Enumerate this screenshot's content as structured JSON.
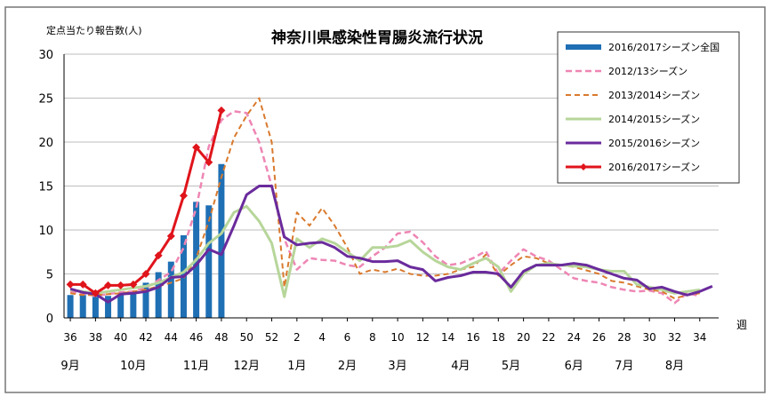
{
  "chart_data": {
    "type": "line",
    "title": "神奈川県感染性胃腸炎流行状況",
    "ylabel": "定点当たり報告数(人)",
    "xlabel": "週",
    "ylim": [
      0,
      30
    ],
    "yticks": [
      0,
      5,
      10,
      15,
      20,
      25,
      30
    ],
    "grid": true,
    "legend_position": "top-right",
    "week_ticks": [
      "36",
      "38",
      "40",
      "42",
      "44",
      "46",
      "48",
      "50",
      "52",
      "2",
      "4",
      "6",
      "8",
      "10",
      "12",
      "14",
      "16",
      "18",
      "20",
      "22",
      "24",
      "26",
      "28",
      "30",
      "32",
      "34"
    ],
    "month_labels": [
      {
        "label": "9月",
        "week": 36
      },
      {
        "label": "10月",
        "week": 41
      },
      {
        "label": "11月",
        "week": 46
      },
      {
        "label": "12月",
        "week": 50
      },
      {
        "label": "1月",
        "week": 54
      },
      {
        "label": "2月",
        "week": 58
      },
      {
        "label": "3月",
        "week": 62
      },
      {
        "label": "4月",
        "week": 67
      },
      {
        "label": "5月",
        "week": 71
      },
      {
        "label": "6月",
        "week": 76
      },
      {
        "label": "7月",
        "week": 80
      },
      {
        "label": "8月",
        "week": 84
      }
    ],
    "bar_series": {
      "name": "2016/2017シーズン全国",
      "color": "#1f6fb4",
      "weeks": [
        36,
        37,
        38,
        39,
        40,
        41,
        42,
        43,
        44,
        45,
        46,
        47,
        48
      ],
      "values": [
        2.6,
        2.6,
        2.4,
        2.5,
        2.6,
        3.0,
        4.0,
        5.2,
        6.4,
        9.4,
        13.2,
        12.8,
        17.5
      ]
    },
    "series": [
      {
        "name": "2012/13シーズン",
        "color": "#ee86b4",
        "dash": "7,4",
        "width": 2.5,
        "markers": false,
        "points": [
          [
            36,
            3.0
          ],
          [
            37,
            2.8
          ],
          [
            38,
            2.5
          ],
          [
            39,
            2.7
          ],
          [
            40,
            2.9
          ],
          [
            41,
            3.0
          ],
          [
            42,
            3.4
          ],
          [
            43,
            4.3
          ],
          [
            44,
            5.2
          ],
          [
            45,
            8.0
          ],
          [
            46,
            12.5
          ],
          [
            47,
            19.5
          ],
          [
            48,
            22.5
          ],
          [
            49,
            23.5
          ],
          [
            50,
            23.3
          ],
          [
            51,
            20.0
          ],
          [
            52,
            15.0
          ],
          [
            53,
            9.0
          ],
          [
            54,
            5.5
          ],
          [
            55,
            6.8
          ],
          [
            56,
            6.6
          ],
          [
            57,
            6.5
          ],
          [
            58,
            6.0
          ],
          [
            59,
            5.8
          ],
          [
            60,
            7.0
          ],
          [
            61,
            8.0
          ],
          [
            62,
            9.6
          ],
          [
            63,
            9.8
          ],
          [
            64,
            8.6
          ],
          [
            65,
            7.0
          ],
          [
            66,
            6.0
          ],
          [
            67,
            6.2
          ],
          [
            68,
            6.8
          ],
          [
            69,
            7.6
          ],
          [
            70,
            5.0
          ],
          [
            71,
            6.5
          ],
          [
            72,
            7.8
          ],
          [
            73,
            7.0
          ],
          [
            74,
            6.5
          ],
          [
            75,
            5.5
          ],
          [
            76,
            4.5
          ],
          [
            77,
            4.2
          ],
          [
            78,
            4.0
          ],
          [
            79,
            3.5
          ],
          [
            80,
            3.2
          ],
          [
            81,
            3.0
          ],
          [
            82,
            3.1
          ],
          [
            83,
            2.8
          ],
          [
            84,
            1.7
          ],
          [
            85,
            2.8
          ],
          [
            86,
            2.5
          ]
        ]
      },
      {
        "name": "2013/2014シーズン",
        "color": "#d97a2e",
        "dash": "6,4",
        "width": 2,
        "markers": false,
        "points": [
          [
            36,
            2.8
          ],
          [
            37,
            2.6
          ],
          [
            38,
            2.6
          ],
          [
            39,
            2.7
          ],
          [
            40,
            2.8
          ],
          [
            41,
            3.0
          ],
          [
            42,
            3.2
          ],
          [
            43,
            3.6
          ],
          [
            44,
            4.0
          ],
          [
            45,
            4.5
          ],
          [
            46,
            6.8
          ],
          [
            47,
            11.0
          ],
          [
            48,
            16.0
          ],
          [
            49,
            20.5
          ],
          [
            50,
            23.0
          ],
          [
            51,
            25.0
          ],
          [
            52,
            20.0
          ],
          [
            53,
            3.5
          ],
          [
            54,
            12.0
          ],
          [
            55,
            10.5
          ],
          [
            56,
            12.5
          ],
          [
            57,
            10.5
          ],
          [
            58,
            8.0
          ],
          [
            59,
            5.0
          ],
          [
            60,
            5.5
          ],
          [
            61,
            5.2
          ],
          [
            62,
            5.6
          ],
          [
            63,
            5.0
          ],
          [
            64,
            4.8
          ],
          [
            65,
            4.8
          ],
          [
            66,
            5.0
          ],
          [
            67,
            5.5
          ],
          [
            68,
            5.8
          ],
          [
            69,
            7.2
          ],
          [
            70,
            4.8
          ],
          [
            71,
            6.0
          ],
          [
            72,
            7.0
          ],
          [
            73,
            6.8
          ],
          [
            74,
            6.2
          ],
          [
            75,
            6.0
          ],
          [
            76,
            5.8
          ],
          [
            77,
            5.4
          ],
          [
            78,
            5.0
          ],
          [
            79,
            4.2
          ],
          [
            80,
            4.0
          ],
          [
            81,
            3.6
          ],
          [
            82,
            3.2
          ],
          [
            83,
            3.0
          ],
          [
            84,
            2.2
          ],
          [
            85,
            2.6
          ],
          [
            86,
            2.8
          ]
        ]
      },
      {
        "name": "2014/2015シーズン",
        "color": "#b7d69a",
        "dash": "",
        "width": 3,
        "markers": false,
        "points": [
          [
            36,
            3.2
          ],
          [
            37,
            3.0
          ],
          [
            38,
            2.8
          ],
          [
            39,
            3.0
          ],
          [
            40,
            3.2
          ],
          [
            41,
            3.4
          ],
          [
            42,
            3.6
          ],
          [
            43,
            4.0
          ],
          [
            44,
            4.6
          ],
          [
            45,
            5.2
          ],
          [
            46,
            6.6
          ],
          [
            47,
            8.5
          ],
          [
            48,
            9.6
          ],
          [
            49,
            12.0
          ],
          [
            50,
            12.7
          ],
          [
            51,
            11.0
          ],
          [
            52,
            8.5
          ],
          [
            53,
            2.4
          ],
          [
            54,
            9.0
          ],
          [
            55,
            8.0
          ],
          [
            56,
            9.0
          ],
          [
            57,
            8.5
          ],
          [
            58,
            7.5
          ],
          [
            59,
            6.5
          ],
          [
            60,
            8.0
          ],
          [
            61,
            8.0
          ],
          [
            62,
            8.2
          ],
          [
            63,
            8.8
          ],
          [
            64,
            7.5
          ],
          [
            65,
            6.5
          ],
          [
            66,
            5.8
          ],
          [
            67,
            5.5
          ],
          [
            68,
            6.2
          ],
          [
            69,
            6.8
          ],
          [
            70,
            5.8
          ],
          [
            71,
            3.0
          ],
          [
            72,
            5.0
          ],
          [
            73,
            6.0
          ],
          [
            74,
            6.2
          ],
          [
            75,
            6.0
          ],
          [
            76,
            5.9
          ],
          [
            77,
            5.8
          ],
          [
            78,
            5.5
          ],
          [
            79,
            5.3
          ],
          [
            80,
            5.3
          ],
          [
            81,
            3.8
          ],
          [
            82,
            3.5
          ],
          [
            83,
            3.2
          ],
          [
            84,
            2.8
          ],
          [
            85,
            3.0
          ],
          [
            86,
            3.2
          ]
        ]
      },
      {
        "name": "2015/2016シーズン",
        "color": "#6a2b9c",
        "dash": "",
        "width": 3,
        "markers": false,
        "points": [
          [
            36,
            3.3
          ],
          [
            37,
            2.9
          ],
          [
            38,
            2.7
          ],
          [
            39,
            1.8
          ],
          [
            40,
            2.7
          ],
          [
            41,
            2.8
          ],
          [
            42,
            3.0
          ],
          [
            43,
            3.5
          ],
          [
            44,
            4.6
          ],
          [
            45,
            4.7
          ],
          [
            46,
            6.0
          ],
          [
            47,
            7.8
          ],
          [
            48,
            7.2
          ],
          [
            49,
            10.5
          ],
          [
            50,
            14.0
          ],
          [
            51,
            15.0
          ],
          [
            52,
            15.0
          ],
          [
            53,
            9.2
          ],
          [
            54,
            8.3
          ],
          [
            55,
            8.5
          ],
          [
            56,
            8.6
          ],
          [
            57,
            8.0
          ],
          [
            58,
            7.0
          ],
          [
            59,
            6.8
          ],
          [
            60,
            6.4
          ],
          [
            61,
            6.4
          ],
          [
            62,
            6.5
          ],
          [
            63,
            5.8
          ],
          [
            64,
            5.5
          ],
          [
            65,
            4.2
          ],
          [
            66,
            4.6
          ],
          [
            67,
            4.8
          ],
          [
            68,
            5.2
          ],
          [
            69,
            5.2
          ],
          [
            70,
            5.0
          ],
          [
            71,
            3.5
          ],
          [
            72,
            5.3
          ],
          [
            73,
            6.0
          ],
          [
            74,
            6.0
          ],
          [
            75,
            6.0
          ],
          [
            76,
            6.2
          ],
          [
            77,
            6.0
          ],
          [
            78,
            5.5
          ],
          [
            79,
            5.0
          ],
          [
            80,
            4.5
          ],
          [
            81,
            4.3
          ],
          [
            82,
            3.3
          ],
          [
            83,
            3.5
          ],
          [
            84,
            3.0
          ],
          [
            85,
            2.6
          ],
          [
            86,
            3.0
          ],
          [
            87,
            3.6
          ]
        ]
      },
      {
        "name": "2016/2017シーズン",
        "color": "#e0141b",
        "dash": "",
        "width": 3,
        "markers": true,
        "points": [
          [
            36,
            3.8
          ],
          [
            37,
            3.8
          ],
          [
            38,
            2.8
          ],
          [
            39,
            3.7
          ],
          [
            40,
            3.7
          ],
          [
            41,
            3.8
          ],
          [
            42,
            5.0
          ],
          [
            43,
            7.1
          ],
          [
            44,
            9.3
          ],
          [
            45,
            13.9
          ],
          [
            46,
            19.4
          ],
          [
            47,
            17.7
          ],
          [
            48,
            23.6
          ]
        ]
      }
    ]
  }
}
